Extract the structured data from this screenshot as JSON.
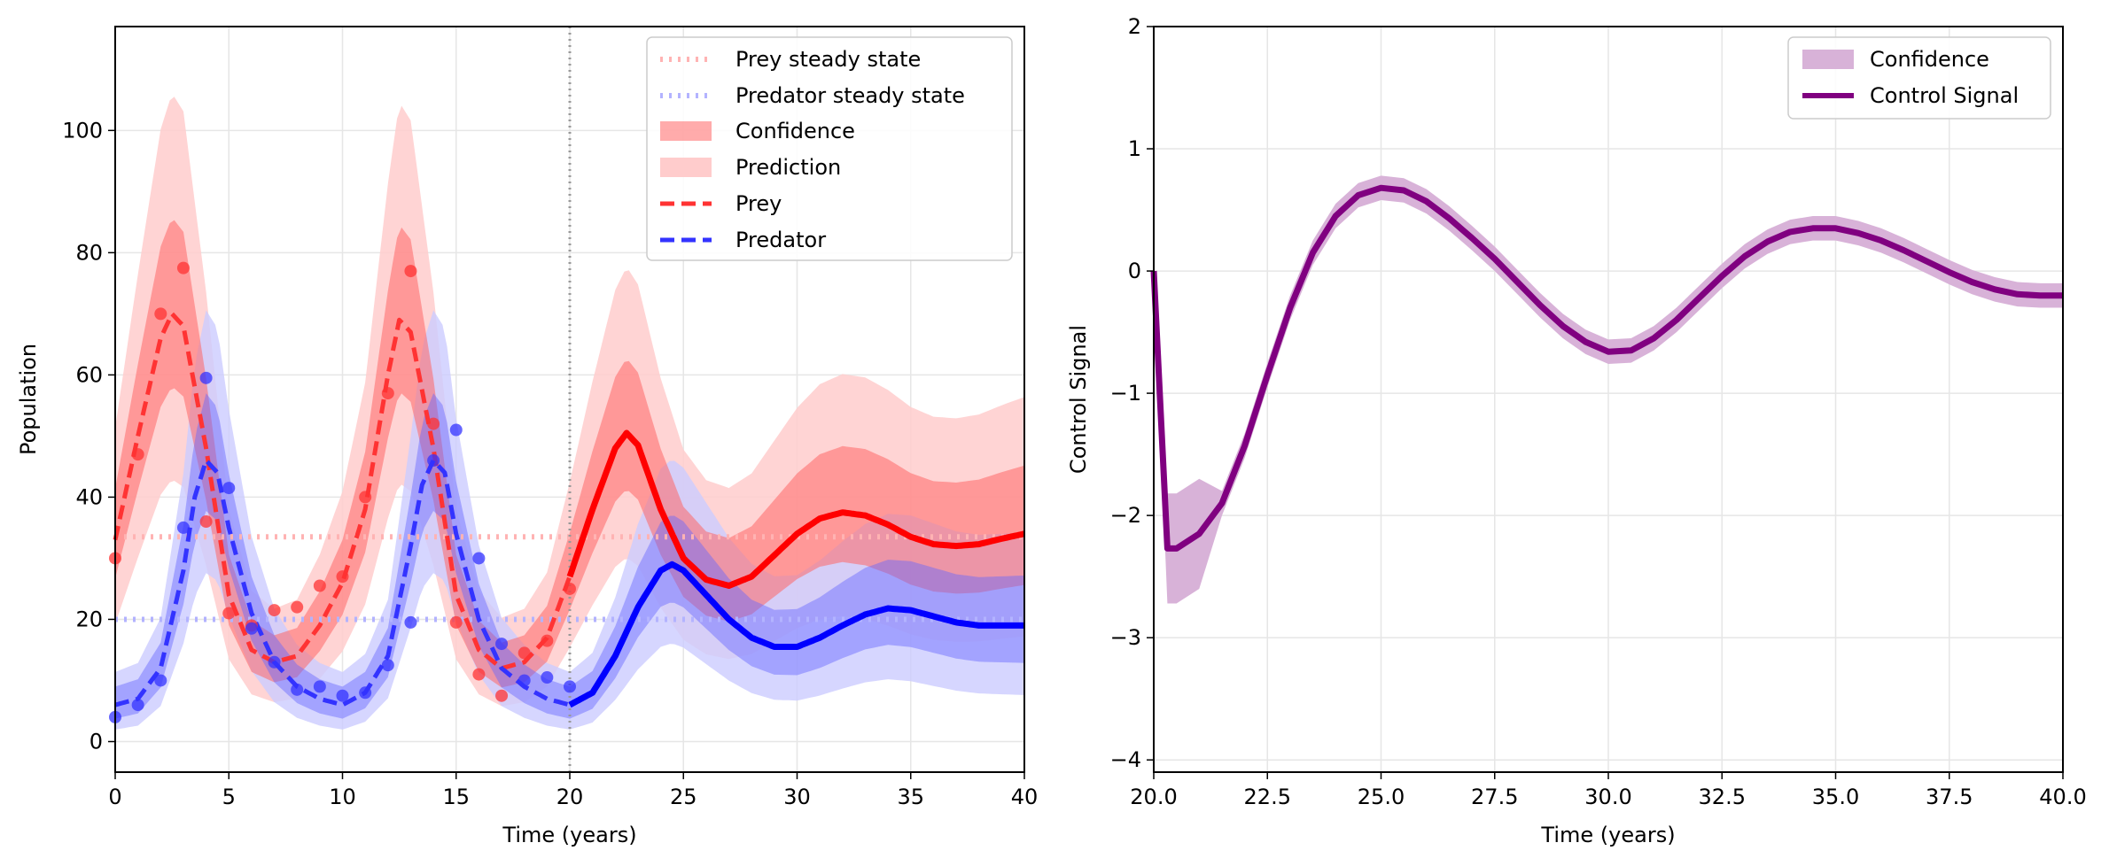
{
  "chart_data": [
    {
      "type": "line",
      "xlabel": "Time (years)",
      "ylabel": "Population",
      "xlim": [
        0,
        40
      ],
      "ylim": [
        -5,
        117
      ],
      "xticks": [
        "0",
        "5",
        "10",
        "15",
        "20",
        "25",
        "30",
        "35",
        "40"
      ],
      "yticks": [
        "0",
        "20",
        "40",
        "60",
        "80",
        "100"
      ],
      "grid": true,
      "legend_position": "top-right",
      "vertical_line_x": 20,
      "legend": [
        "Prey steady state",
        "Predator steady state",
        "Confidence",
        "Prediction",
        "Prey",
        "Predator"
      ],
      "colors": {
        "prey": "#ff0000",
        "predator": "#0000ff",
        "prey_light": "#ffb3b3",
        "predator_light": "#b3b3ff"
      },
      "steady_states": {
        "prey": 33.5,
        "predator": 20
      },
      "series": [
        {
          "name": "Prey",
          "style": "dashed",
          "x": [
            0,
            1,
            2,
            2.5,
            3,
            4,
            5,
            6,
            7,
            8,
            9,
            10,
            11,
            12,
            12.5,
            13,
            14,
            15,
            16,
            17,
            18,
            19,
            20
          ],
          "values": [
            33,
            50,
            66,
            70,
            68,
            48,
            24,
            15,
            13,
            14,
            19,
            26,
            38,
            60,
            69,
            67,
            48,
            24,
            15,
            12,
            13,
            17,
            27
          ]
        },
        {
          "name": "Prey",
          "style": "solid",
          "x": [
            20,
            21,
            22,
            22.5,
            23,
            24,
            25,
            26,
            27,
            28,
            29,
            30,
            31,
            32,
            33,
            34,
            35,
            36,
            37,
            38,
            39,
            40
          ],
          "values": [
            27,
            38,
            48,
            50.5,
            48.5,
            38,
            30,
            26.5,
            25.5,
            27,
            30.5,
            34,
            36.5,
            37.5,
            37,
            35.5,
            33.5,
            32.3,
            32,
            32.3,
            33.2,
            34
          ]
        },
        {
          "name": "Predator",
          "style": "dashed",
          "x": [
            0,
            1,
            2,
            3,
            3.5,
            4,
            4.5,
            5,
            6,
            7,
            8,
            9,
            10,
            11,
            12,
            13,
            13.5,
            14,
            14.5,
            15,
            16,
            17,
            18,
            19,
            20
          ],
          "values": [
            6,
            7,
            12,
            28,
            40,
            46,
            44,
            35,
            21,
            13,
            9,
            7,
            6,
            8,
            14,
            32,
            42,
            46,
            44,
            34,
            20,
            12,
            9,
            7,
            6
          ]
        },
        {
          "name": "Predator",
          "style": "solid",
          "x": [
            20,
            21,
            22,
            23,
            24,
            24.5,
            25,
            26,
            27,
            28,
            29,
            30,
            31,
            32,
            33,
            34,
            35,
            36,
            37,
            38,
            39,
            40
          ],
          "values": [
            6,
            8,
            14,
            22,
            28,
            29,
            28,
            24,
            20,
            17,
            15.5,
            15.5,
            17,
            19,
            20.8,
            21.8,
            21.5,
            20.5,
            19.5,
            19,
            19,
            19
          ]
        }
      ],
      "observations": {
        "prey": {
          "x": [
            0,
            1,
            2,
            3,
            4,
            5,
            6,
            7,
            8,
            9,
            10,
            11,
            12,
            13,
            14,
            15,
            16,
            17,
            18,
            19,
            20
          ],
          "values": [
            30,
            47,
            70,
            77.5,
            36,
            21,
            19,
            21.5,
            22,
            25.5,
            27,
            40,
            57,
            77,
            52,
            19.5,
            11,
            7.5,
            14.5,
            16.5,
            25
          ]
        },
        "predator": {
          "x": [
            0,
            1,
            2,
            3,
            4,
            5,
            6,
            7,
            8,
            9,
            10,
            11,
            12,
            13,
            14,
            15,
            16,
            17,
            18,
            19,
            20
          ],
          "values": [
            4,
            6,
            10,
            35,
            59.5,
            41.5,
            18.5,
            13,
            8.5,
            9,
            7.5,
            8,
            12.5,
            19.5,
            46,
            51,
            30,
            16,
            10,
            10.5,
            9
          ]
        }
      }
    },
    {
      "type": "line",
      "xlabel": "Time (years)",
      "ylabel": "Control Signal",
      "xlim": [
        20,
        40
      ],
      "ylim": [
        -4.1,
        2
      ],
      "xticks": [
        "20.0",
        "22.5",
        "25.0",
        "27.5",
        "30.0",
        "32.5",
        "35.0",
        "37.5",
        "40.0"
      ],
      "yticks": [
        "2",
        "1",
        "0",
        "−1",
        "−2",
        "−3",
        "−4"
      ],
      "grid": true,
      "legend_position": "top-right",
      "legend": [
        "Confidence",
        "Control Signal"
      ],
      "colors": {
        "signal": "#800080",
        "band": "#d8b2d8"
      },
      "band_halfwidth": 0.1,
      "series": [
        {
          "name": "Control Signal",
          "x": [
            20,
            20.3,
            20.5,
            21,
            21.5,
            22,
            22.5,
            23,
            23.5,
            24,
            24.5,
            25,
            25.5,
            26,
            26.5,
            27,
            27.5,
            28,
            28.5,
            29,
            29.5,
            30,
            30.5,
            31,
            31.5,
            32,
            32.5,
            33,
            33.5,
            34,
            34.5,
            35,
            35.5,
            36,
            36.5,
            37,
            37.5,
            38,
            38.5,
            39,
            39.5,
            40
          ],
          "values": [
            0.0,
            -2.27,
            -2.27,
            -2.15,
            -1.9,
            -1.43,
            -0.85,
            -0.3,
            0.15,
            0.45,
            0.62,
            0.68,
            0.66,
            0.57,
            0.43,
            0.27,
            0.1,
            -0.09,
            -0.28,
            -0.45,
            -0.58,
            -0.66,
            -0.65,
            -0.55,
            -0.4,
            -0.22,
            -0.04,
            0.12,
            0.24,
            0.32,
            0.35,
            0.35,
            0.31,
            0.25,
            0.17,
            0.08,
            -0.01,
            -0.09,
            -0.15,
            -0.19,
            -0.2,
            -0.2
          ]
        }
      ]
    }
  ]
}
